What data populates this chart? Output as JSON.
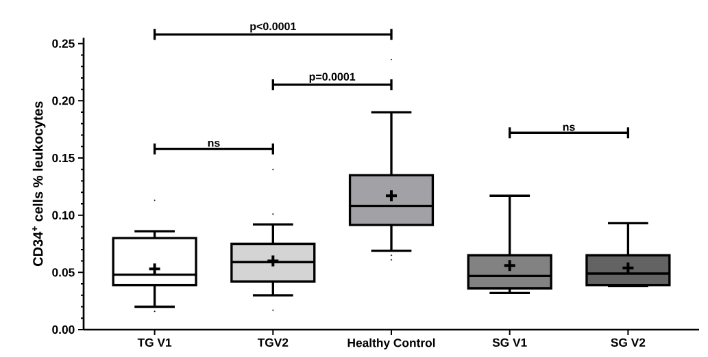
{
  "chart_data": {
    "type": "box",
    "categories": [
      "TG V1",
      "TGV2",
      "Healthy Control",
      "SG V1",
      "SG V2"
    ],
    "ylabel": "CD34$^{+}$ cells % leukocytes",
    "ylim": [
      0,
      0.255
    ],
    "yticks": [
      {
        "value": 0,
        "label": "0.00"
      },
      {
        "value": 0.05,
        "label": "0.05"
      },
      {
        "value": 0.1,
        "label": "0.10"
      },
      {
        "value": 0.15,
        "label": "0.15"
      },
      {
        "value": 0.2,
        "label": "0.20"
      },
      {
        "value": 0.25,
        "label": "0.25"
      }
    ],
    "colors": [
      "#ffffff",
      "#d4d4d4",
      "#a2a2a6",
      "#828282",
      "#636363"
    ],
    "boxes": [
      {
        "low": 0.02,
        "q1": 0.039,
        "median": 0.048,
        "q3": 0.08,
        "high": 0.086,
        "mean": 0.053,
        "outliers": [
          0.113,
          0.016
        ]
      },
      {
        "low": 0.03,
        "q1": 0.042,
        "median": 0.059,
        "q3": 0.075,
        "high": 0.092,
        "mean": 0.06,
        "outliers": [
          0.14,
          0.101,
          0.017
        ]
      },
      {
        "low": 0.069,
        "q1": 0.0915,
        "median": 0.108,
        "q3": 0.135,
        "high": 0.19,
        "mean": 0.117,
        "outliers": [
          0.236,
          0.065,
          0.061
        ]
      },
      {
        "low": 0.032,
        "q1": 0.036,
        "median": 0.047,
        "q3": 0.065,
        "high": 0.117,
        "mean": 0.056
      },
      {
        "low": 0.038,
        "q1": 0.039,
        "median": 0.049,
        "q3": 0.065,
        "high": 0.093,
        "mean": 0.054
      }
    ],
    "annotations": [
      "p<0.0001",
      "p=0.0001",
      "ns",
      "ns"
    ]
  }
}
